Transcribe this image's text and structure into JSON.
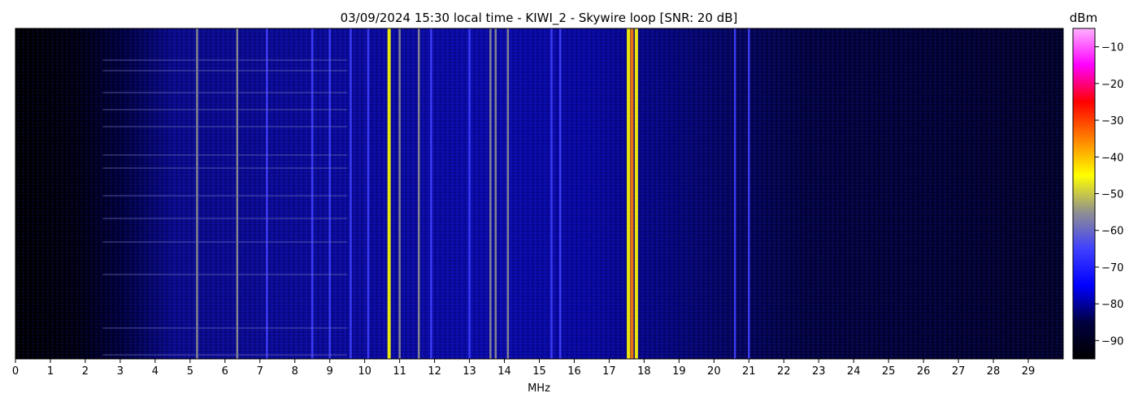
{
  "chart_data": {
    "type": "heatmap",
    "title": "03/09/2024 15:30 local time - KIWI_2 - Skywire loop [SNR: 20 dB]",
    "xlabel": "MHz",
    "ylabel": "",
    "xlim": [
      0,
      30
    ],
    "x_ticks": [
      0,
      1,
      2,
      3,
      4,
      5,
      6,
      7,
      8,
      9,
      10,
      11,
      12,
      13,
      14,
      15,
      16,
      17,
      18,
      19,
      20,
      21,
      22,
      23,
      24,
      25,
      26,
      27,
      28,
      29
    ],
    "colorbar": {
      "label": "dBm",
      "range": [
        -95,
        -5
      ],
      "ticks": [
        -10,
        -20,
        -30,
        -40,
        -50,
        -60,
        -70,
        -80,
        -90
      ],
      "colors": [
        "#000000",
        "#000040",
        "#0000ff",
        "#4040ff",
        "#909090",
        "#ffff00",
        "#ff8000",
        "#ff0000",
        "#ff00ff",
        "#ffb0ff"
      ]
    },
    "strong_signals_mhz": [
      {
        "freq": 5.2,
        "level": -60
      },
      {
        "freq": 6.35,
        "level": -60
      },
      {
        "freq": 7.2,
        "level": -62
      },
      {
        "freq": 8.5,
        "level": -62
      },
      {
        "freq": 9.0,
        "level": -62
      },
      {
        "freq": 9.6,
        "level": -62
      },
      {
        "freq": 10.1,
        "level": -63
      },
      {
        "freq": 10.7,
        "level": -42
      },
      {
        "freq": 11.0,
        "level": -60
      },
      {
        "freq": 11.55,
        "level": -58
      },
      {
        "freq": 11.9,
        "level": -63
      },
      {
        "freq": 13.0,
        "level": -63
      },
      {
        "freq": 13.6,
        "level": -58
      },
      {
        "freq": 13.75,
        "level": -56
      },
      {
        "freq": 14.1,
        "level": -60
      },
      {
        "freq": 15.35,
        "level": -62
      },
      {
        "freq": 15.6,
        "level": -62
      },
      {
        "freq": 17.55,
        "level": -42
      },
      {
        "freq": 17.65,
        "level": -40
      },
      {
        "freq": 17.78,
        "level": -45
      },
      {
        "freq": 20.6,
        "level": -65
      },
      {
        "freq": 21.0,
        "level": -62
      }
    ]
  }
}
